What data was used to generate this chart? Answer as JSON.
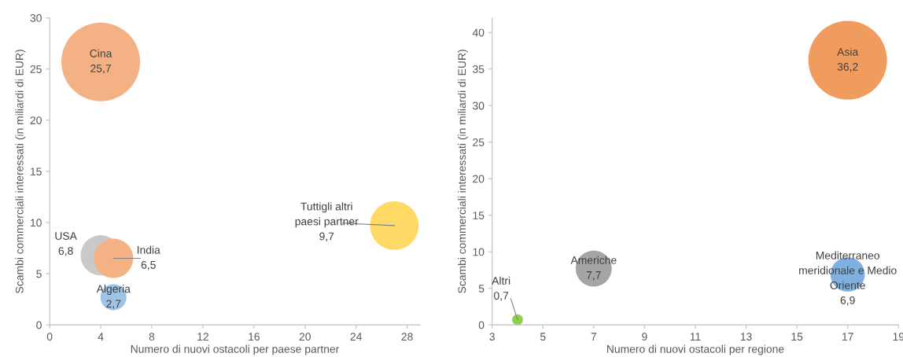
{
  "chart_data": [
    {
      "type": "bubble",
      "xlabel": "Numero di nuovi ostacoli per paese partner",
      "ylabel": "Scambi commerciali interessati (in miliardi di EUR)",
      "xlim": [
        0,
        29
      ],
      "xticks": [
        0,
        4,
        8,
        12,
        16,
        20,
        24,
        28
      ],
      "ylim": [
        0,
        30
      ],
      "yticks": [
        0,
        5,
        10,
        15,
        20,
        25,
        30
      ],
      "grid": false,
      "legend": false,
      "series": [
        {
          "name": "Cina",
          "color": "#f4b183",
          "x": [
            4
          ],
          "values": [
            25.7
          ],
          "sizes": [
            1
          ],
          "value_labels": [
            "25,7"
          ]
        },
        {
          "name": "USA",
          "color": "#c9c9c9",
          "x": [
            4
          ],
          "values": [
            6.8
          ],
          "sizes": [
            0.26
          ],
          "value_labels": [
            "6,8"
          ]
        },
        {
          "name": "India",
          "color": "#f4b183",
          "x": [
            5
          ],
          "values": [
            6.5
          ],
          "sizes": [
            0.25
          ],
          "value_labels": [
            "6,5"
          ]
        },
        {
          "name": "Algeria",
          "color": "#9dc3e6",
          "x": [
            5
          ],
          "values": [
            2.7
          ],
          "sizes": [
            0.11
          ],
          "value_labels": [
            "2,7"
          ]
        },
        {
          "name": "Tuttigli altri\npaesi partner",
          "color": "#ffd966",
          "x": [
            27
          ],
          "values": [
            9.7
          ],
          "sizes": [
            0.38
          ],
          "value_labels": [
            "9,7"
          ]
        }
      ]
    },
    {
      "type": "bubble",
      "xlabel": "Numero di nuovi ostacoli per regione",
      "ylabel": "Scambi commerciali interessati (in miliardi di EUR)",
      "xlim": [
        3,
        19
      ],
      "xticks": [
        3,
        5,
        7,
        9,
        11,
        13,
        15,
        17,
        19
      ],
      "ylim": [
        0,
        42
      ],
      "yticks": [
        0,
        5,
        10,
        15,
        20,
        25,
        30,
        35,
        40
      ],
      "grid": false,
      "legend": false,
      "series": [
        {
          "name": "Asia",
          "color": "#f19c5f",
          "x": [
            17
          ],
          "values": [
            36.2
          ],
          "sizes": [
            1
          ],
          "value_labels": [
            "36,2"
          ]
        },
        {
          "name": "Americhe",
          "color": "#a5a5a5",
          "x": [
            7
          ],
          "values": [
            7.7
          ],
          "sizes": [
            0.21
          ],
          "value_labels": [
            "7,7"
          ]
        },
        {
          "name": "Mediterraneo\nmeridionale e Medio\nOriente",
          "color": "#7fb0e0",
          "x": [
            17
          ],
          "values": [
            6.9
          ],
          "sizes": [
            0.19
          ],
          "value_labels": [
            "6,9"
          ]
        },
        {
          "name": "Altri",
          "color": "#8fd14f",
          "x": [
            4
          ],
          "values": [
            0.7
          ],
          "sizes": [
            0.019
          ],
          "value_labels": [
            "0,7"
          ]
        }
      ]
    }
  ]
}
